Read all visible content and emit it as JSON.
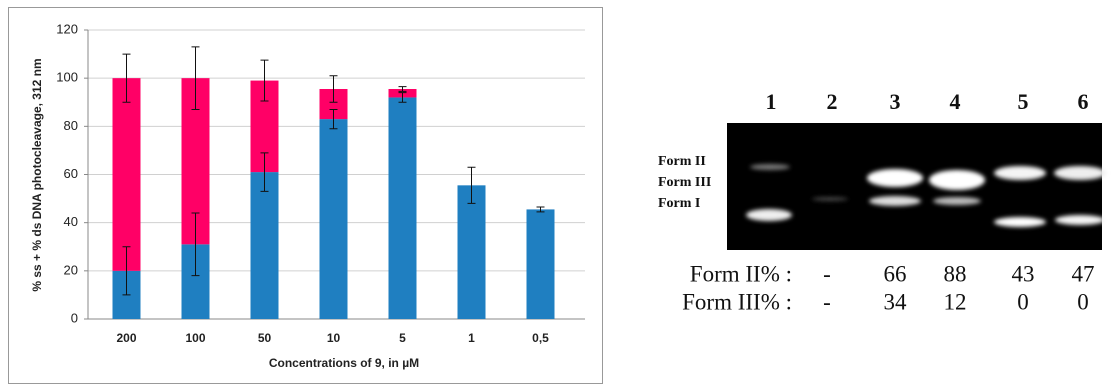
{
  "chart_data": {
    "type": "stacked-bar",
    "y_label": "% ss + % ds DNA photocleavage, 312 nm",
    "x_label": "Concentrations of 9, in µM",
    "categories": [
      "200",
      "100",
      "50",
      "10",
      "5",
      "1",
      "0,5"
    ],
    "series": [
      {
        "color": "#1f7fc1",
        "values": [
          20,
          31,
          61,
          83,
          92,
          55.5,
          45.5
        ],
        "errors": [
          10,
          13,
          8,
          4,
          2,
          7.5,
          1
        ]
      },
      {
        "color": "#ff0066",
        "values": [
          80,
          69,
          38,
          12.5,
          3.5,
          null,
          null
        ],
        "errors": [
          10,
          13,
          8.5,
          5.5,
          1,
          null,
          null
        ]
      }
    ],
    "ylim": [
      0,
      120
    ],
    "yticks": [
      0,
      20,
      40,
      60,
      80,
      100,
      120
    ],
    "grid": true
  },
  "gel": {
    "lanes": [
      1,
      2,
      3,
      4,
      5,
      6
    ],
    "forms": [
      "Form II",
      "Form III",
      "Form I"
    ],
    "rows": [
      {
        "label": "Form II% :",
        "values": [
          "-",
          66,
          88,
          43,
          47
        ]
      },
      {
        "label": "Form III% :",
        "values": [
          "-",
          34,
          12,
          0,
          0
        ]
      }
    ]
  }
}
